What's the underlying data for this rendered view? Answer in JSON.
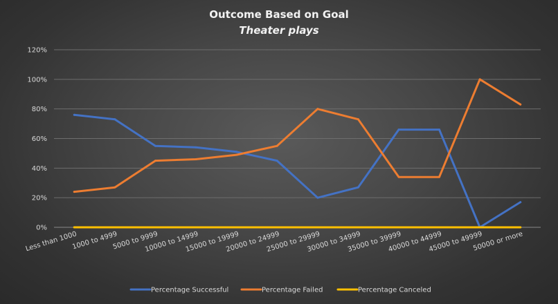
{
  "chart_data": {
    "type": "line",
    "title": "Outcome Based on Goal",
    "subtitle": "Theater plays",
    "categories": [
      "Less than 1000",
      "1000 to 4999",
      "5000 to 9999",
      "10000 to 14999",
      "15000 to 19999",
      "20000 to 24999",
      "25000 to 29999",
      "30000 to 34999",
      "35000 to 39999",
      "40000 to 44999",
      "45000 to 49999",
      "50000 or more"
    ],
    "ylim": [
      0,
      120
    ],
    "yticks": [
      0,
      20,
      40,
      60,
      80,
      100,
      120
    ],
    "ytick_labels": [
      "0%",
      "20%",
      "40%",
      "60%",
      "80%",
      "100%",
      "120%"
    ],
    "grid": true,
    "legend_position": "bottom",
    "series": [
      {
        "name": "Percentage Successful",
        "color": "#4472c4",
        "values": [
          76,
          73,
          55,
          54,
          51,
          45,
          20,
          27,
          66,
          66,
          0,
          17
        ]
      },
      {
        "name": "Percentage Failed",
        "color": "#ed7d31",
        "values": [
          24,
          27,
          45,
          46,
          49,
          55,
          80,
          73,
          34,
          34,
          100,
          83
        ]
      },
      {
        "name": "Percentage Canceled",
        "color": "#ffc000",
        "values": [
          0,
          0,
          0,
          0,
          0,
          0,
          0,
          0,
          0,
          0,
          0,
          0
        ]
      }
    ]
  }
}
